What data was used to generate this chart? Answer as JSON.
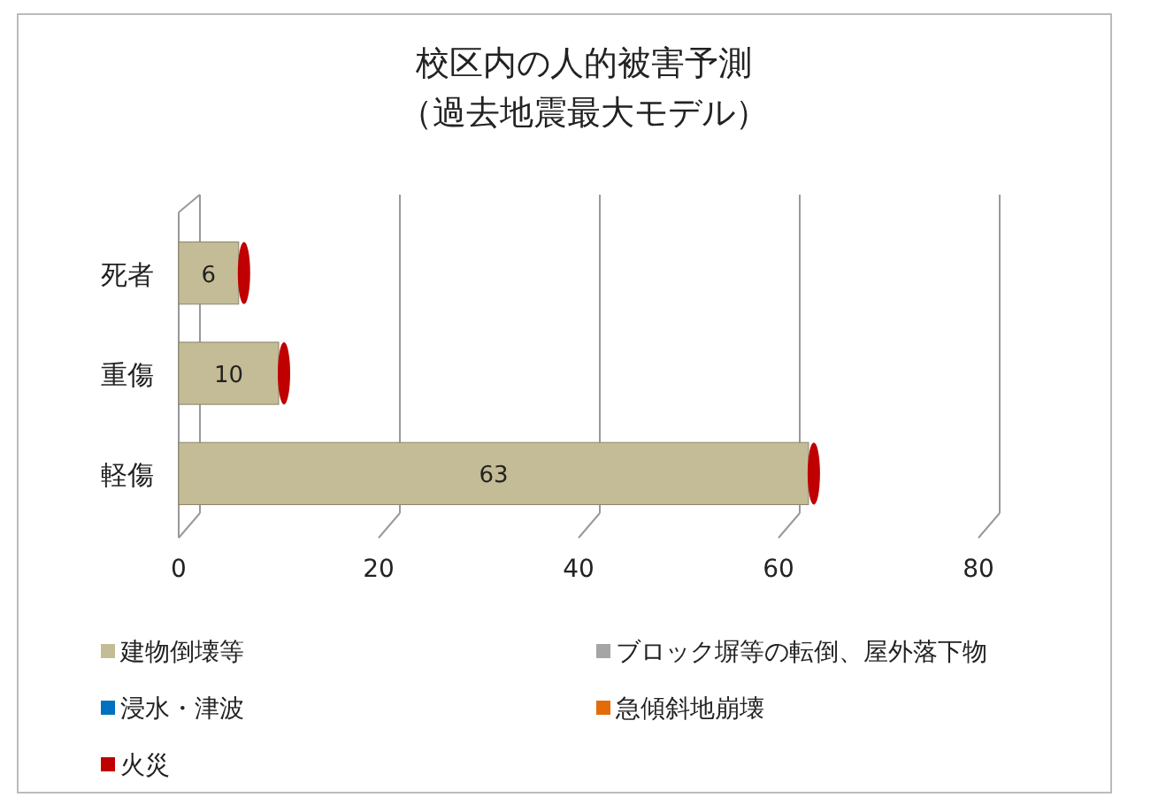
{
  "chart_data": {
    "type": "bar",
    "orientation": "horizontal",
    "stacked": true,
    "title": "校区内の人的被害予測",
    "subtitle": "（過去地震最大モデル）",
    "categories": [
      "死者",
      "重傷",
      "軽傷"
    ],
    "series": [
      {
        "name": "建物倒壊等",
        "color": "#c4bc96",
        "values": [
          6,
          10,
          63
        ],
        "value_labels": [
          "6",
          "10",
          "63"
        ]
      },
      {
        "name": "ブロック塀等の転倒、屋外落下物",
        "color": "#a5a5a5",
        "values": [
          0,
          0,
          0
        ]
      },
      {
        "name": "浸水・津波",
        "color": "#0070c0",
        "values": [
          0,
          0,
          0
        ]
      },
      {
        "name": "急傾斜地崩壊",
        "color": "#e36c09",
        "values": [
          0,
          0,
          0
        ]
      },
      {
        "name": "火災",
        "color": "#c00000",
        "values": [
          0,
          0,
          0
        ]
      }
    ],
    "xlim": [
      0,
      80
    ],
    "xticks": [
      0,
      20,
      40,
      60,
      80
    ],
    "grid": "x",
    "legend": "bottom"
  }
}
